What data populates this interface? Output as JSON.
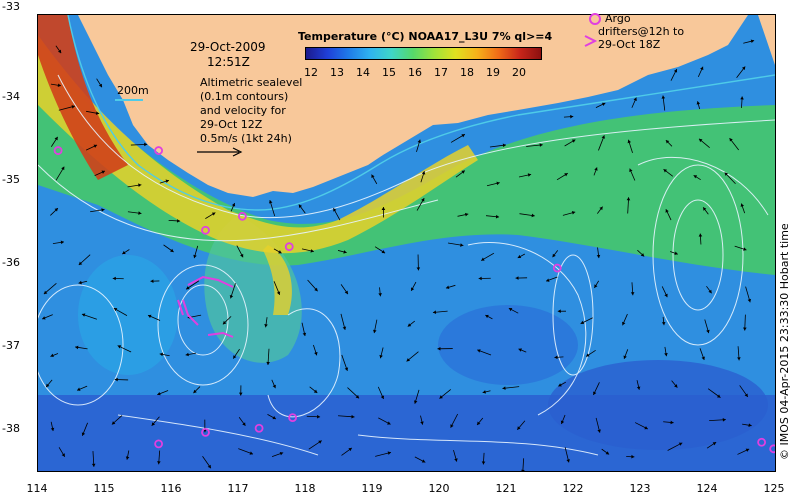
{
  "title": {
    "temperature_legend": "Temperature (°C) NOAA17_L3U 7% ql>=4",
    "date": "29-Oct-2009",
    "time": "12:51Z"
  },
  "colorbar_ticks": [
    "12",
    "13",
    "14",
    "15",
    "16",
    "17",
    "18",
    "19",
    "20"
  ],
  "contour_legend": {
    "label": "200m",
    "color": "#4ecbe8"
  },
  "altimetry_note": [
    "Altimetric sealevel",
    "(0.1m contours)",
    "and velocity for",
    "29-Oct 12Z",
    "0.5m/s (1kt 24h)"
  ],
  "argo_note": [
    "Argo",
    "drifters@12h to",
    "29-Oct 18Z"
  ],
  "credit": "© IMOS 04-Apr-2015 23:33:30 Hobart time",
  "y_axis_labels": [
    "-33",
    "-34",
    "-35",
    "-36",
    "-37",
    "-38"
  ],
  "x_axis_labels": [
    "114",
    "115",
    "116",
    "117",
    "118",
    "119",
    "120",
    "121",
    "122",
    "123",
    "124",
    "125"
  ],
  "extent": {
    "lon": [
      114,
      125
    ],
    "lat": [
      -38.55,
      -33
    ]
  },
  "colors": {
    "land": "#f8c89a",
    "argo_marker": "#e040e0",
    "contour": "#e8f4ff",
    "arrow": "#000000"
  },
  "argo_floats": [
    {
      "lon": 114.3,
      "lat": -34.65
    },
    {
      "lon": 115.8,
      "lat": -34.65
    },
    {
      "lon": 117.05,
      "lat": -35.45
    },
    {
      "lon": 116.5,
      "lat": -35.62
    },
    {
      "lon": 117.75,
      "lat": -35.82
    },
    {
      "lon": 121.75,
      "lat": -36.08
    },
    {
      "lon": 116.5,
      "lat": -38.08
    },
    {
      "lon": 117.3,
      "lat": -38.03
    },
    {
      "lon": 117.8,
      "lat": -37.9
    },
    {
      "lon": 115.8,
      "lat": -38.22
    },
    {
      "lon": 124.8,
      "lat": -38.2
    },
    {
      "lon": 124.98,
      "lat": -38.28
    }
  ]
}
